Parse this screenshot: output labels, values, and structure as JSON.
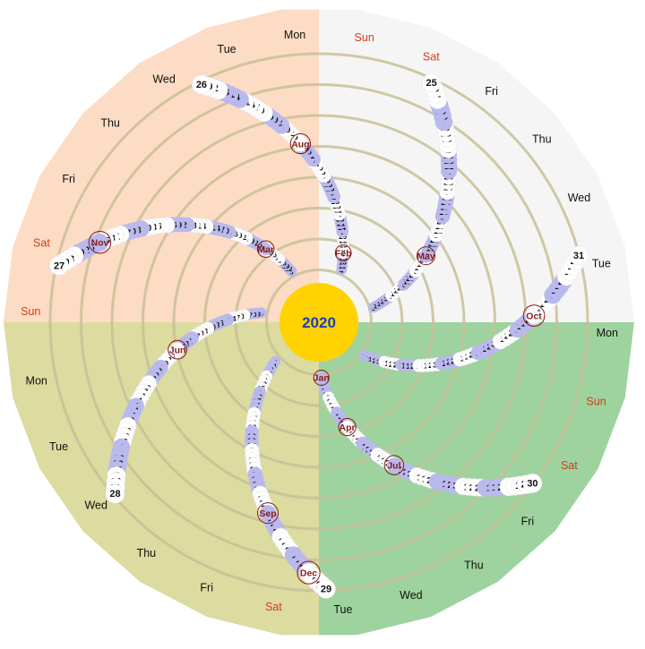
{
  "year": "2020",
  "weekdays": [
    "Mon",
    "Tue",
    "Wed",
    "Thu",
    "Fri",
    "Sat",
    "Sun"
  ],
  "month_labels": [
    "Jan",
    "Feb",
    "Mar",
    "Apr",
    "May",
    "Jun",
    "Jul",
    "Aug",
    "Sep",
    "Oct",
    "Nov",
    "Dec"
  ],
  "colors": {
    "q1": "#cfe9cf",
    "q1_fill": "#9ed39f",
    "q2": "#dcdba0",
    "q3": "#fcdcc4",
    "q4": "#f5f5f5",
    "ring": "#c8c096",
    "spoke": "#e6b07c",
    "dot_lavender": "#b9b9ee",
    "dot_white": "#ffffff",
    "sunday_text": "#d43b1a",
    "year_circle": "#ffd200",
    "year_text": "#1a3ec2",
    "month_text": "#8b1a1a"
  },
  "center_label": "2020"
}
